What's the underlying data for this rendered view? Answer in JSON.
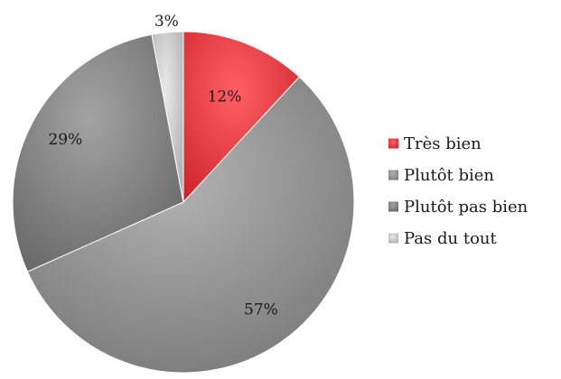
{
  "chart_data": {
    "type": "pie",
    "title": "",
    "slices": [
      {
        "label": "Très bien",
        "value": 12,
        "display": "12%",
        "color": "#f0474c"
      },
      {
        "label": "Plutôt bien",
        "value": 57,
        "display": "57%",
        "color": "#9a9a9a"
      },
      {
        "label": "Plutôt pas bien",
        "value": 29,
        "display": "29%",
        "color": "#8a8a8a"
      },
      {
        "label": "Pas du tout",
        "value": 3,
        "display": "3%",
        "color": "#d0d0d0"
      }
    ],
    "start_angle_deg": 0,
    "direction": "clockwise",
    "legend_position": "right"
  }
}
